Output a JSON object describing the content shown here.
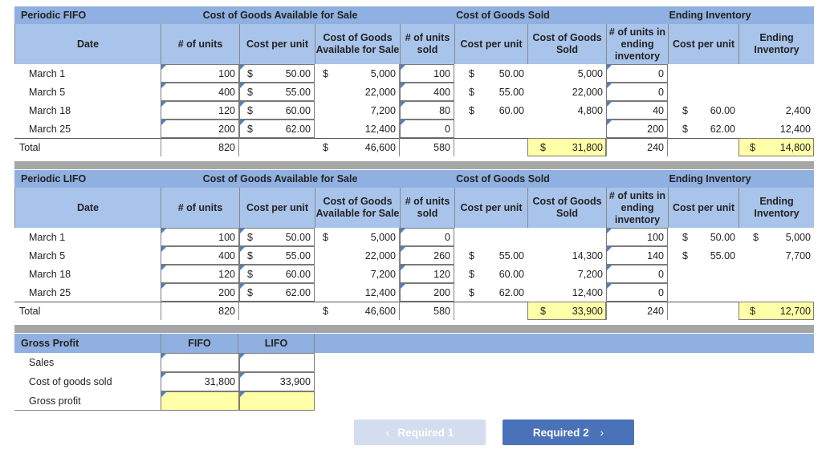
{
  "fifo": {
    "title": "Periodic FIFO",
    "groups": {
      "available": "Cost of Goods Available for Sale",
      "sold": "Cost of Goods Sold",
      "ending": "Ending Inventory"
    },
    "cols": {
      "date": "Date",
      "units": "# of units",
      "cpu": "Cost per unit",
      "cogafs": "Cost of Goods Available for Sale",
      "units_sold": "# of units sold",
      "cpu_sold": "Cost per unit",
      "cogs": "Cost of Goods Sold",
      "units_end": "# of units in ending inventory",
      "cpu_end": "Cost per unit",
      "end_inv": "Ending Inventory"
    },
    "rows": [
      {
        "date": "March 1",
        "units": "100",
        "d1": "$",
        "cpu": "50.00",
        "d2": "$",
        "cogafs": "5,000",
        "us": "100",
        "d3": "$",
        "cpus": "50.00",
        "cogs": "5,000",
        "ue": "0",
        "d4": "",
        "cpue": "",
        "d5": "",
        "ei": ""
      },
      {
        "date": "March 5",
        "units": "400",
        "d1": "$",
        "cpu": "55.00",
        "d2": "",
        "cogafs": "22,000",
        "us": "400",
        "d3": "$",
        "cpus": "55.00",
        "cogs": "22,000",
        "ue": "0",
        "d4": "",
        "cpue": "",
        "d5": "",
        "ei": ""
      },
      {
        "date": "March 18",
        "units": "120",
        "d1": "$",
        "cpu": "60.00",
        "d2": "",
        "cogafs": "7,200",
        "us": "80",
        "d3": "$",
        "cpus": "60.00",
        "cogs": "4,800",
        "ue": "40",
        "d4": "$",
        "cpue": "60.00",
        "d5": "",
        "ei": "2,400"
      },
      {
        "date": "March 25",
        "units": "200",
        "d1": "$",
        "cpu": "62.00",
        "d2": "",
        "cogafs": "12,400",
        "us": "0",
        "d3": "",
        "cpus": "",
        "cogs": "",
        "ue": "200",
        "d4": "$",
        "cpue": "62.00",
        "d5": "",
        "ei": "12,400"
      }
    ],
    "total": {
      "label": "Total",
      "units": "820",
      "d2": "$",
      "cogafs": "46,600",
      "us": "580",
      "d3": "$",
      "cogs": "31,800",
      "ue": "240",
      "d5": "$",
      "ei": "14,800"
    }
  },
  "lifo": {
    "title": "Periodic LIFO",
    "groups": {
      "available": "Cost of Goods Available for Sale",
      "sold": "Cost of Goods Sold",
      "ending": "Ending Inventory"
    },
    "cols": {
      "date": "Date",
      "units": "# of units",
      "cpu": "Cost per unit",
      "cogafs": "Cost of Goods Available for Sale",
      "units_sold": "# of units sold",
      "cpu_sold": "Cost per unit",
      "cogs": "Cost of Goods Sold",
      "units_end": "# of units in ending inventory",
      "cpu_end": "Cost per unit",
      "end_inv": "Ending Inventory"
    },
    "rows": [
      {
        "date": "March 1",
        "units": "100",
        "d1": "$",
        "cpu": "50.00",
        "d2": "$",
        "cogafs": "5,000",
        "us": "0",
        "d3": "",
        "cpus": "",
        "cogs": "",
        "ue": "100",
        "d4": "$",
        "cpue": "50.00",
        "d5": "$",
        "ei": "5,000"
      },
      {
        "date": "March 5",
        "units": "400",
        "d1": "$",
        "cpu": "55.00",
        "d2": "",
        "cogafs": "22,000",
        "us": "260",
        "d3": "$",
        "cpus": "55.00",
        "cogs": "14,300",
        "ue": "140",
        "d4": "$",
        "cpue": "55.00",
        "d5": "",
        "ei": "7,700"
      },
      {
        "date": "March 18",
        "units": "120",
        "d1": "$",
        "cpu": "60.00",
        "d2": "",
        "cogafs": "7,200",
        "us": "120",
        "d3": "$",
        "cpus": "60.00",
        "cogs": "7,200",
        "ue": "0",
        "d4": "",
        "cpue": "",
        "d5": "",
        "ei": ""
      },
      {
        "date": "March 25",
        "units": "200",
        "d1": "$",
        "cpu": "62.00",
        "d2": "",
        "cogafs": "12,400",
        "us": "200",
        "d3": "$",
        "cpus": "62.00",
        "cogs": "12,400",
        "ue": "0",
        "d4": "",
        "cpue": "",
        "d5": "",
        "ei": ""
      }
    ],
    "total": {
      "label": "Total",
      "units": "820",
      "d2": "$",
      "cogafs": "46,600",
      "us": "580",
      "d3": "$",
      "cogs": "33,900",
      "ue": "240",
      "d5": "$",
      "ei": "12,700"
    }
  },
  "gross_profit": {
    "title": "Gross Profit",
    "col_fifo": "FIFO",
    "col_lifo": "LIFO",
    "rows": [
      {
        "label": "Sales",
        "fifo": "",
        "lifo": ""
      },
      {
        "label": "Cost of goods sold",
        "fifo": "31,800",
        "lifo": "33,900"
      },
      {
        "label": "Gross profit",
        "fifo": "",
        "lifo": ""
      }
    ]
  },
  "nav": {
    "prev_label": "Required 1",
    "next_label": "Required 2",
    "prev_icon": "chevron-left-icon",
    "next_icon": "chevron-right-icon"
  },
  "colors": {
    "header": "#8fb0e0",
    "band": "#a9c4ea",
    "separator": "#a6a6a6",
    "prev_button": "#d3ddef",
    "next_button": "#4a72b8",
    "input_marker": "#4e7fc9",
    "highlight_input": "#ffffa8"
  }
}
